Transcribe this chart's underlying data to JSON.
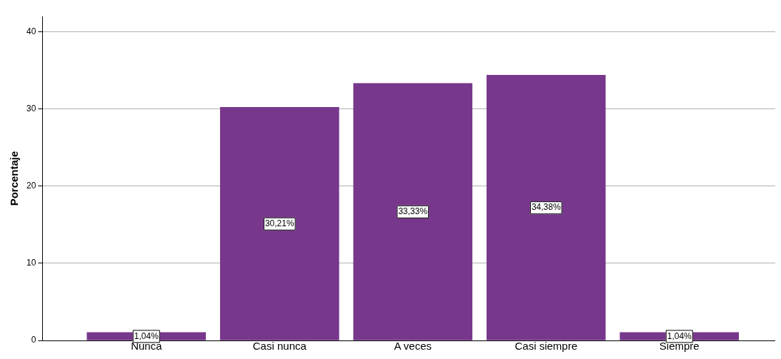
{
  "chart_data": {
    "type": "bar",
    "ylabel": "Porcentaje",
    "categories": [
      "Nunca",
      "Casi nunca",
      "A veces",
      "Casi siempre",
      "Siempre"
    ],
    "values": [
      1.04,
      30.21,
      33.33,
      34.38,
      1.04
    ],
    "value_labels": [
      "1,04%",
      "30,21%",
      "33,33%",
      "34,38%",
      "1,04%"
    ],
    "color": "#77378c",
    "ylim": [
      0,
      42
    ],
    "yticks": [
      0,
      10,
      20,
      30,
      40
    ],
    "grid": "y",
    "legend": false
  }
}
